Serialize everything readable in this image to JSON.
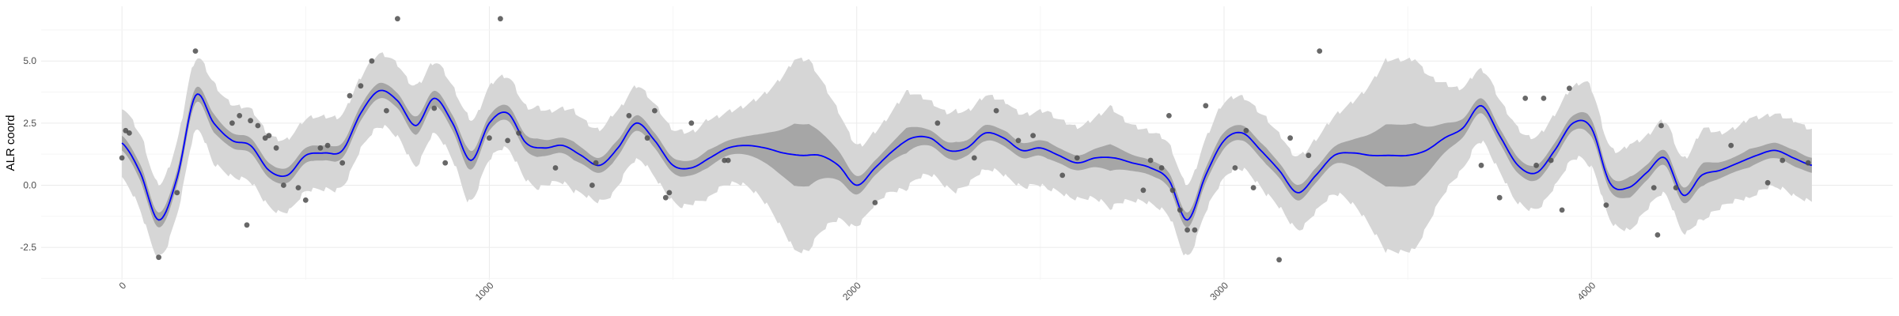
{
  "chart_data": {
    "type": "line",
    "title": "",
    "xlabel": "",
    "ylabel": "ALR coord",
    "xlim": [
      -220,
      4820
    ],
    "ylim": [
      -3.8,
      7.2
    ],
    "x_ticks": [
      0,
      1000,
      2000,
      3000,
      4000
    ],
    "x_tick_labels": [
      "0",
      "1000",
      "2000",
      "3000",
      "4000"
    ],
    "y_ticks": [
      -2.5,
      0.0,
      2.5,
      5.0
    ],
    "y_tick_labels": [
      "-2.5",
      "0.0",
      "2.5",
      "5.0"
    ],
    "grid": true,
    "legend": "none",
    "colors": {
      "mean_line": "#0000ff",
      "inner_band": "#a6a6a6",
      "outer_band": "#d6d6d6",
      "points": "#4d4d4d",
      "grid_major": "#ebebeb",
      "grid_minor": "#f5f5f5"
    },
    "series": [
      {
        "type": "line",
        "x": [
          0,
          50,
          100,
          150,
          200,
          250,
          300,
          350,
          400,
          450,
          500,
          550,
          600,
          650,
          700,
          750,
          800,
          850,
          900,
          950,
          1000,
          1050,
          1100,
          1150,
          1200,
          1250,
          1300,
          1350,
          1400,
          1450,
          1500,
          1550,
          1600,
          1650,
          1700,
          1750,
          1800,
          1850,
          1900,
          1950,
          2000,
          2050,
          2100,
          2150,
          2200,
          2250,
          2300,
          2350,
          2400,
          2450,
          2500,
          2550,
          2600,
          2650,
          2700,
          2750,
          2800,
          2850,
          2900,
          2950,
          3000,
          3050,
          3100,
          3150,
          3200,
          3250,
          3300,
          3350,
          3400,
          3450,
          3500,
          3550,
          3600,
          3650,
          3700,
          3750,
          3800,
          3850,
          3900,
          3950,
          4000,
          4050,
          4100,
          4150,
          4200,
          4250,
          4300,
          4350,
          4400,
          4450,
          4500,
          4550,
          4600
        ],
        "y": [
          1.7,
          0.5,
          -1.4,
          0.3,
          3.6,
          2.5,
          1.8,
          1.6,
          0.6,
          0.4,
          1.2,
          1.3,
          1.4,
          2.9,
          3.8,
          3.4,
          2.4,
          3.5,
          2.5,
          1.0,
          2.5,
          2.9,
          1.7,
          1.5,
          1.6,
          1.2,
          0.8,
          1.5,
          2.5,
          1.8,
          0.8,
          0.7,
          1.1,
          1.5,
          1.6,
          1.5,
          1.3,
          1.2,
          1.2,
          0.8,
          0.0,
          0.7,
          1.4,
          1.9,
          1.9,
          1.4,
          1.5,
          2.1,
          1.9,
          1.4,
          1.5,
          1.2,
          0.9,
          1.1,
          1.1,
          0.9,
          0.7,
          0.2,
          -1.4,
          0.4,
          1.8,
          2.1,
          1.4,
          0.6,
          -0.3,
          0.4,
          1.2,
          1.3,
          1.2,
          1.2,
          1.2,
          1.4,
          1.9,
          2.3,
          3.2,
          2.0,
          0.8,
          0.5,
          1.4,
          2.5,
          2.3,
          0.1,
          -0.1,
          0.5,
          1.1,
          -0.4,
          0.4,
          0.6,
          0.9,
          1.2,
          1.4,
          1.1,
          0.8
        ]
      },
      {
        "type": "scatter",
        "x": [
          0,
          10,
          20,
          100,
          150,
          200,
          300,
          320,
          340,
          350,
          370,
          390,
          400,
          420,
          440,
          480,
          500,
          540,
          560,
          600,
          620,
          650,
          680,
          720,
          750,
          850,
          880,
          1000,
          1030,
          1050,
          1080,
          1180,
          1280,
          1290,
          1380,
          1430,
          1450,
          1480,
          1490,
          1550,
          1640,
          1650,
          2050,
          2220,
          2320,
          2380,
          2440,
          2480,
          2560,
          2600,
          2780,
          2800,
          2830,
          2850,
          2860,
          2880,
          2900,
          2920,
          2950,
          3030,
          3060,
          3080,
          3150,
          3180,
          3230,
          3260,
          3700,
          3750,
          3820,
          3850,
          3870,
          3890,
          3920,
          3940,
          4040,
          4170,
          4180,
          4190,
          4230,
          4380,
          4480,
          4520,
          4590
        ],
        "y": [
          1.1,
          2.2,
          2.1,
          -2.9,
          -0.3,
          5.4,
          2.5,
          2.8,
          -1.6,
          2.6,
          2.4,
          1.9,
          2.0,
          1.5,
          0.0,
          -0.1,
          -0.6,
          1.5,
          1.6,
          0.9,
          3.6,
          4.0,
          5.0,
          3.0,
          6.7,
          3.1,
          0.9,
          1.9,
          6.7,
          1.8,
          2.1,
          0.7,
          0.0,
          0.9,
          2.8,
          1.9,
          3.0,
          -0.5,
          -0.3,
          2.5,
          1.0,
          1.0,
          -0.7,
          2.5,
          1.1,
          3.0,
          1.8,
          2.0,
          0.4,
          1.1,
          -0.2,
          1.0,
          0.7,
          2.8,
          -0.2,
          -1.0,
          -1.8,
          -1.8,
          3.2,
          0.7,
          2.2,
          -0.1,
          -3.0,
          1.9,
          1.2,
          5.4,
          0.8,
          -0.5,
          3.5,
          0.8,
          3.5,
          1.0,
          -1.0,
          3.9,
          -0.8,
          -0.1,
          -2.0,
          2.4,
          -0.1,
          1.6,
          0.1,
          1.0,
          0.9
        ]
      }
    ]
  }
}
